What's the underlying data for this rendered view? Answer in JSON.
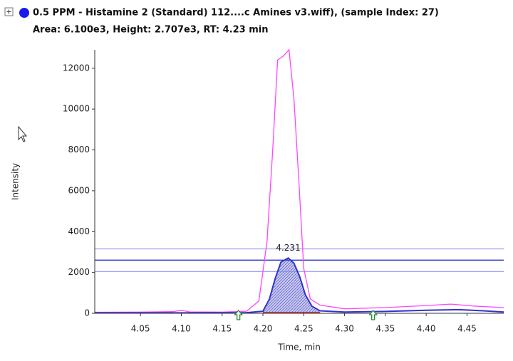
{
  "chart_data": {
    "type": "line",
    "title": "0.5 PPM - Histamine 2 (Standard) 112....c Amines v3.wiff), (sample Index: 27)",
    "subtitle": "Area: 6.100e3, Height: 2.707e3, RT: 4.23 min",
    "x_label": "Time, min",
    "y_label": "Intensity",
    "xlim": [
      3.994,
      4.495
    ],
    "ylim": [
      0,
      12900
    ],
    "xticks": [
      4.05,
      {
        "value": 4.1,
        "label": "4.10"
      },
      4.15,
      {
        "value": 4.2,
        "label": "4.20"
      },
      4.25,
      {
        "value": 4.3,
        "label": "4.30"
      },
      4.35,
      {
        "value": 4.4,
        "label": "4.40"
      },
      4.45
    ],
    "yticks": [
      0,
      2000,
      4000,
      6000,
      8000,
      10000,
      12000
    ],
    "series": [
      {
        "color": "#ff44ff",
        "x": [
          3.994,
          4.05,
          4.09,
          4.1,
          4.11,
          4.15,
          4.18,
          4.195,
          4.205,
          4.212,
          4.218,
          4.225,
          4.232,
          4.238,
          4.244,
          4.25,
          4.258,
          4.27,
          4.3,
          4.35,
          4.4,
          4.43,
          4.46,
          4.495
        ],
        "values": [
          50,
          60,
          80,
          150,
          70,
          60,
          100,
          600,
          3500,
          8000,
          12400,
          12600,
          12900,
          10500,
          6500,
          2200,
          700,
          400,
          220,
          280,
          380,
          450,
          350,
          280
        ]
      },
      {
        "color": "#3333cc",
        "x": [
          3.994,
          4.1,
          4.18,
          4.2,
          4.208,
          4.215,
          4.222,
          4.231,
          4.238,
          4.245,
          4.252,
          4.26,
          4.27,
          4.3,
          4.35,
          4.4,
          4.44,
          4.47,
          4.495
        ],
        "values": [
          20,
          20,
          30,
          100,
          700,
          1700,
          2500,
          2707,
          2450,
          1800,
          900,
          350,
          120,
          60,
          90,
          150,
          180,
          120,
          60
        ]
      }
    ],
    "integration_range": [
      4.2,
      4.27
    ],
    "threshold_lines": [
      3150,
      2600,
      2050
    ],
    "markers": [
      4.17,
      4.335
    ],
    "peak_label": 4.231
  }
}
